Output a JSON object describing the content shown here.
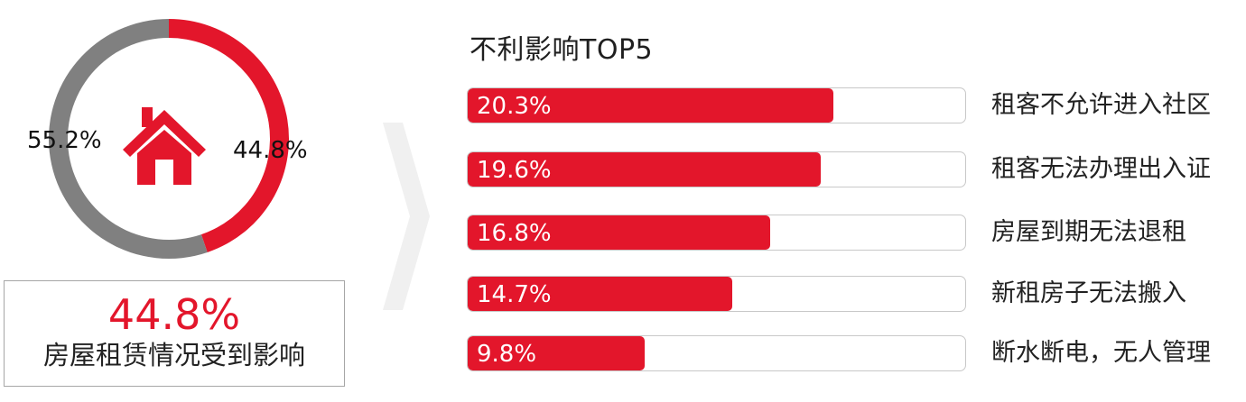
{
  "chart_data": [
    {
      "type": "pie",
      "title": "",
      "slices": [
        {
          "label": "44.8%",
          "value": 44.8,
          "color": "#e3162b"
        },
        {
          "label": "55.2%",
          "value": 55.2,
          "color": "#808080"
        }
      ],
      "center_icon": "house-icon",
      "summary": {
        "value": "44.8%",
        "text": "房屋租赁情况受到影响"
      }
    },
    {
      "type": "bar",
      "title": "不利影响TOP5",
      "orientation": "horizontal",
      "xlim": [
        0,
        27.7
      ],
      "categories": [
        "租客不允许进入社区",
        "租客无法办理出入证",
        "房屋到期无法退租",
        "新租房子无法搬入",
        "断水断电，无人管理"
      ],
      "values": [
        20.3,
        19.6,
        16.8,
        14.7,
        9.8
      ],
      "value_labels": [
        "20.3%",
        "19.6%",
        "16.8%",
        "14.7%",
        "9.8%"
      ],
      "color": "#e3162b",
      "track_color": "#ffffff",
      "track_border": "#c8c8c8"
    }
  ],
  "decor": {
    "chevron_color": "#f0f0f0",
    "chevron_icon": "chevron-right-icon"
  }
}
